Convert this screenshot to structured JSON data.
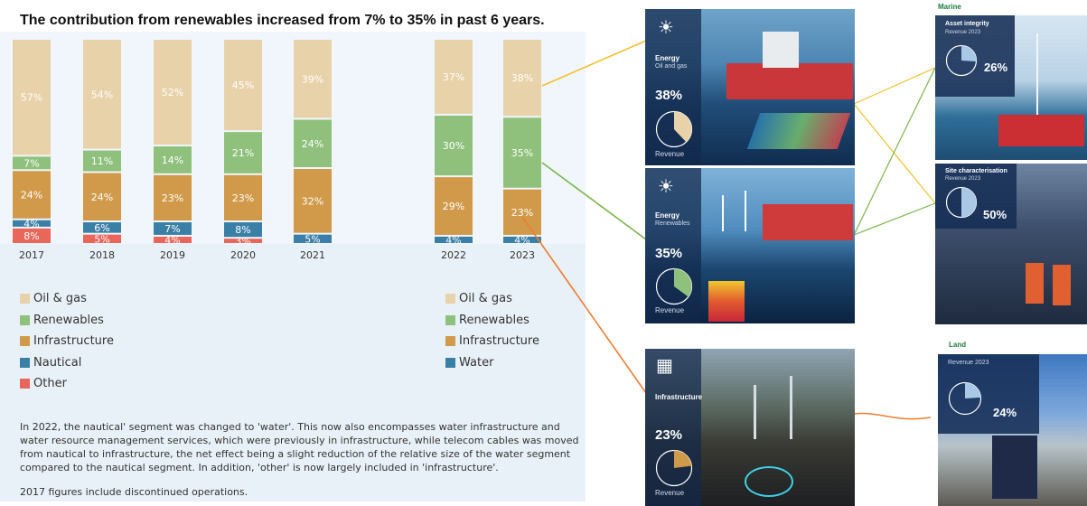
{
  "headline": "The contribution from renewables increased from 7% to 35% in past 6 years.",
  "chart_data": {
    "type": "bar",
    "stacked": true,
    "categories": [
      "2017",
      "2018",
      "2019",
      "2020",
      "2021",
      "2022",
      "2023"
    ],
    "series": [
      {
        "name": "Other",
        "color": "#e8665a",
        "values": [
          8,
          5,
          4,
          3,
          null,
          null,
          null
        ]
      },
      {
        "name": "Water / Nautical",
        "color": "#3a7fa6",
        "values": [
          4,
          6,
          7,
          8,
          5,
          4,
          4
        ]
      },
      {
        "name": "Infrastructure",
        "color": "#d09a4a",
        "values": [
          24,
          24,
          23,
          23,
          32,
          29,
          23
        ]
      },
      {
        "name": "Renewables",
        "color": "#8fc17d",
        "values": [
          7,
          11,
          14,
          21,
          24,
          30,
          35
        ]
      },
      {
        "name": "Oil & gas",
        "color": "#e8d2aa",
        "values": [
          57,
          54,
          52,
          45,
          39,
          37,
          38
        ]
      }
    ],
    "value_labels": [
      [
        "8%",
        "4%",
        "24%",
        "7%",
        "57%"
      ],
      [
        "5%",
        "6%",
        "24%",
        "11%",
        "54%"
      ],
      [
        "4%",
        "7%",
        "23%",
        "14%",
        "52%"
      ],
      [
        "3%",
        "8%",
        "23%",
        "21%",
        "45%"
      ],
      [
        null,
        "5%",
        "32%",
        "24%",
        "39%"
      ],
      [
        null,
        "4%",
        "29%",
        "30%",
        "37%"
      ],
      [
        null,
        "4%",
        "23%",
        "35%",
        "38%"
      ]
    ]
  },
  "legend_left": [
    "Oil & gas",
    "Renewables",
    "Infrastructure",
    "Nautical",
    "Other"
  ],
  "legend_right": [
    "Oil & gas",
    "Renewables",
    "Infrastructure",
    "Water"
  ],
  "note": "In 2022, the nautical' segment was changed to 'water'. This now also encompasses water infrastructure and water resource management services, which were previously in infrastructure, while telecom cables was moved from nautical to infrastructure, the net effect being a slight reduction of the relative size of the water segment compared to the nautical segment. In addition, 'other' is now largely included in 'infrastructure'.",
  "note2": "2017 figures include discontinued operations.",
  "segments": [
    {
      "title": "Energy",
      "subtitle": "Oil and gas",
      "pct": "38%",
      "fraction": 0.38,
      "revenue": "Revenue",
      "icon": "lightbulb-icon"
    },
    {
      "title": "Energy",
      "subtitle": "Renewables",
      "pct": "35%",
      "fraction": 0.35,
      "revenue": "Revenue",
      "icon": "lightbulb-icon"
    },
    {
      "title": "Infrastructure",
      "subtitle": "",
      "pct": "23%",
      "fraction": 0.23,
      "revenue": "Revenue",
      "icon": "city-icon"
    }
  ],
  "marine": {
    "label": "Marine",
    "asset": {
      "title": "Asset integrity",
      "sub": "Revenue 2023",
      "pct": "26%",
      "fraction": 0.26
    },
    "site": {
      "title": "Site characterisation",
      "sub": "Revenue 2023",
      "pct": "50%",
      "fraction": 0.5
    }
  },
  "land": {
    "label": "Land",
    "sub": "Revenue 2023",
    "pct": "24%",
    "fraction": 0.24
  },
  "colors": {
    "connector_yellow": "#f2c12e",
    "connector_green": "#7ab648",
    "connector_orange": "#ee7d31"
  }
}
